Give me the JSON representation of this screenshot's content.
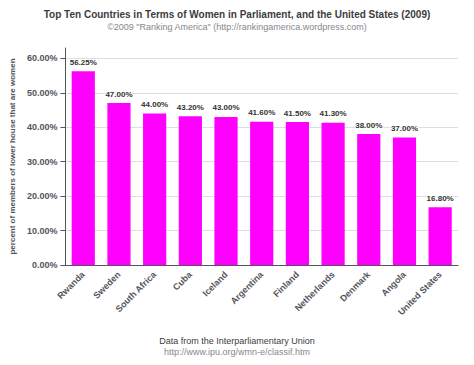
{
  "chart_data": {
    "type": "bar",
    "title": "Top Ten Countries in Terms of Women in Parliament, and the United States (2009)",
    "subtitle": "©2009 \"Ranking America\" (http://rankingamerica.wordpress.com)",
    "categories": [
      "Rwanda",
      "Sweden",
      "South Africa",
      "Cuba",
      "Iceland",
      "Argentina",
      "Finland",
      "Netherlands",
      "Denmark",
      "Angola",
      "United States"
    ],
    "values": [
      56.25,
      47.0,
      44.0,
      43.2,
      43.0,
      41.6,
      41.5,
      41.3,
      38.0,
      37.0,
      16.8
    ],
    "value_labels": [
      "56.25%",
      "47.00%",
      "44.00%",
      "43.20%",
      "43.00%",
      "41.60%",
      "41.50%",
      "41.30%",
      "38.00%",
      "37.00%",
      "16.80%"
    ],
    "color": "#FF00FF",
    "ylabel": "percent of members of lower house that are women",
    "ylim": [
      0,
      63
    ],
    "yticks": [
      {
        "value": 0,
        "label": "0.00%"
      },
      {
        "value": 10,
        "label": "10.00%"
      },
      {
        "value": 20,
        "label": "20.00%"
      },
      {
        "value": 30,
        "label": "30.00%"
      },
      {
        "value": 40,
        "label": "40.00%"
      },
      {
        "value": 50,
        "label": "50.00%"
      },
      {
        "value": 60,
        "label": "60.00%"
      }
    ],
    "grid": true,
    "data_labels": true,
    "annotations": [
      "Data from the Interparliamentary Union",
      "http://www.ipu.org/wmn-e/classif.htm"
    ]
  }
}
